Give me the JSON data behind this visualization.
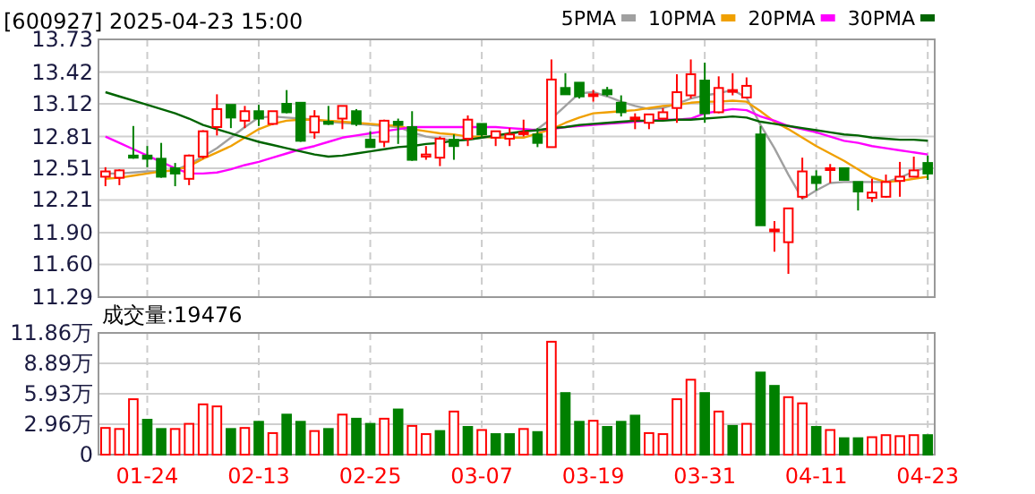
{
  "chart_data": [
    {
      "type": "candlestick",
      "title": "[600927] 2025-04-23 15:00",
      "categories": [
        null,
        null,
        null,
        null,
        null,
        null,
        null,
        null,
        null,
        null,
        null,
        null,
        null,
        null,
        null,
        null,
        null,
        null,
        null,
        null,
        null,
        null,
        null,
        null,
        null,
        null,
        null,
        null,
        null,
        null,
        null,
        null,
        null,
        null,
        null,
        null,
        null,
        null,
        null,
        null,
        null,
        null,
        null,
        null,
        null,
        null,
        null,
        null,
        null,
        null,
        null,
        null,
        null,
        null,
        null,
        null,
        null,
        null,
        null,
        null
      ],
      "ohlc": [
        [
          12.43,
          12.52,
          12.34,
          12.48
        ],
        [
          12.42,
          12.5,
          12.35,
          12.49
        ],
        [
          12.63,
          12.91,
          12.6,
          12.61
        ],
        [
          12.63,
          12.72,
          12.52,
          12.6
        ],
        [
          12.6,
          12.75,
          12.42,
          12.43
        ],
        [
          12.51,
          12.56,
          12.34,
          12.46
        ],
        [
          12.41,
          12.64,
          12.35,
          12.63
        ],
        [
          12.62,
          12.87,
          12.6,
          12.86
        ],
        [
          12.9,
          13.21,
          12.82,
          13.07
        ],
        [
          13.11,
          13.11,
          12.89,
          12.99
        ],
        [
          12.96,
          13.1,
          12.89,
          13.05
        ],
        [
          13.05,
          13.11,
          12.91,
          12.98
        ],
        [
          12.93,
          13.05,
          12.92,
          13.05
        ],
        [
          13.12,
          13.25,
          13.03,
          13.04
        ],
        [
          13.13,
          13.13,
          12.76,
          12.77
        ],
        [
          12.85,
          13.06,
          12.79,
          13.0
        ],
        [
          12.95,
          13.1,
          12.92,
          12.93
        ],
        [
          12.98,
          13.1,
          12.88,
          13.1
        ],
        [
          13.05,
          13.07,
          12.91,
          12.93
        ],
        [
          12.78,
          12.86,
          12.71,
          12.71
        ],
        [
          12.76,
          12.97,
          12.71,
          12.96
        ],
        [
          12.95,
          12.98,
          12.74,
          12.92
        ],
        [
          12.9,
          13.05,
          12.58,
          12.59
        ],
        [
          12.62,
          12.72,
          12.59,
          12.64
        ],
        [
          12.61,
          12.81,
          12.53,
          12.79
        ],
        [
          12.78,
          12.83,
          12.59,
          12.72
        ],
        [
          12.79,
          13.01,
          12.72,
          12.97
        ],
        [
          12.93,
          12.93,
          12.8,
          12.83
        ],
        [
          12.8,
          12.86,
          12.72,
          12.86
        ],
        [
          12.79,
          12.89,
          12.72,
          12.83
        ],
        [
          12.84,
          12.97,
          12.81,
          12.85
        ],
        [
          12.83,
          12.89,
          12.71,
          12.75
        ],
        [
          12.71,
          13.54,
          12.71,
          13.35
        ],
        [
          13.27,
          13.41,
          13.21,
          13.21
        ],
        [
          13.32,
          13.32,
          13.17,
          13.19
        ],
        [
          13.2,
          13.25,
          13.14,
          13.21
        ],
        [
          13.25,
          13.28,
          13.19,
          13.21
        ],
        [
          13.13,
          13.2,
          13.0,
          13.04
        ],
        [
          12.98,
          13.03,
          12.88,
          12.99
        ],
        [
          12.94,
          13.02,
          12.88,
          13.02
        ],
        [
          12.98,
          13.08,
          12.97,
          13.04
        ],
        [
          13.08,
          13.4,
          12.94,
          13.23
        ],
        [
          13.2,
          13.54,
          13.17,
          13.4
        ],
        [
          13.34,
          13.51,
          12.94,
          13.03
        ],
        [
          13.04,
          13.38,
          13.03,
          13.27
        ],
        [
          13.24,
          13.41,
          13.2,
          13.25
        ],
        [
          13.18,
          13.37,
          13.17,
          13.29
        ],
        [
          12.83,
          12.91,
          11.97,
          11.97
        ],
        [
          11.92,
          12.01,
          11.72,
          11.93
        ],
        [
          11.81,
          12.13,
          11.51,
          12.13
        ],
        [
          12.24,
          12.61,
          12.22,
          12.48
        ],
        [
          12.43,
          12.49,
          12.3,
          12.37
        ],
        [
          12.5,
          12.55,
          12.37,
          12.51
        ],
        [
          12.51,
          12.51,
          12.4,
          12.4
        ],
        [
          12.38,
          12.38,
          12.11,
          12.29
        ],
        [
          12.23,
          12.41,
          12.19,
          12.28
        ],
        [
          12.24,
          12.45,
          12.23,
          12.38
        ],
        [
          12.39,
          12.57,
          12.24,
          12.43
        ],
        [
          12.43,
          12.62,
          12.43,
          12.49
        ],
        [
          12.56,
          12.63,
          12.4,
          12.46
        ]
      ],
      "colors": [
        "#ff0000",
        "#ff0000",
        "#008000",
        "#008000",
        "#008000",
        "#008000",
        "#ff0000",
        "#ff0000",
        "#ff0000",
        "#008000",
        "#ff0000",
        "#008000",
        "#ff0000",
        "#008000",
        "#008000",
        "#ff0000",
        "#008000",
        "#ff0000",
        "#008000",
        "#008000",
        "#ff0000",
        "#008000",
        "#008000",
        "#ff0000",
        "#ff0000",
        "#008000",
        "#ff0000",
        "#008000",
        "#ff0000",
        "#ff0000",
        "#ff0000",
        "#008000",
        "#ff0000",
        "#008000",
        "#008000",
        "#ff0000",
        "#008000",
        "#008000",
        "#ff0000",
        "#ff0000",
        "#ff0000",
        "#ff0000",
        "#ff0000",
        "#008000",
        "#ff0000",
        "#ff0000",
        "#ff0000",
        "#008000",
        "#ff0000",
        "#ff0000",
        "#ff0000",
        "#008000",
        "#ff0000",
        "#008000",
        "#008000",
        "#ff0000",
        "#ff0000",
        "#ff0000",
        "#ff0000",
        "#008000"
      ],
      "series": [
        {
          "name": "5PMA",
          "type": "line",
          "color": "#a0a0a0",
          "values": [
            12.46,
            12.46,
            12.47,
            12.48,
            12.48,
            12.49,
            12.55,
            12.62,
            12.7,
            12.8,
            12.9,
            12.99,
            13.0,
            12.99,
            12.98,
            12.97,
            12.95,
            12.94,
            12.93,
            12.92,
            12.91,
            12.9,
            12.85,
            12.81,
            12.79,
            12.77,
            12.78,
            12.8,
            12.81,
            12.83,
            12.86,
            12.88,
            12.98,
            13.1,
            13.22,
            13.23,
            13.19,
            13.14,
            13.1,
            13.07,
            13.08,
            13.12,
            13.17,
            13.2,
            13.22,
            13.25,
            13.18,
            12.92,
            12.7,
            12.45,
            12.22,
            12.3,
            12.37,
            12.38,
            12.38,
            12.38,
            12.38,
            12.42,
            12.48,
            12.52
          ]
        },
        {
          "name": "10PMA",
          "type": "line",
          "color": "#f0a000",
          "values": [
            12.41,
            12.42,
            12.44,
            12.46,
            12.48,
            12.49,
            12.53,
            12.6,
            12.66,
            12.72,
            12.8,
            12.88,
            12.93,
            12.96,
            12.97,
            12.97,
            12.96,
            12.95,
            12.94,
            12.93,
            12.92,
            12.91,
            12.88,
            12.86,
            12.84,
            12.83,
            12.81,
            12.81,
            12.8,
            12.8,
            12.8,
            12.84,
            12.88,
            12.94,
            12.99,
            13.03,
            13.04,
            13.05,
            13.06,
            13.08,
            13.1,
            13.11,
            13.13,
            13.14,
            13.14,
            13.15,
            13.14,
            13.05,
            12.95,
            12.88,
            12.8,
            12.72,
            12.65,
            12.58,
            12.5,
            12.42,
            12.38,
            12.39,
            12.41,
            12.43
          ]
        },
        {
          "name": "20PMA",
          "type": "line",
          "color": "#ff00ff",
          "values": [
            12.81,
            12.75,
            12.69,
            12.63,
            12.57,
            12.51,
            12.46,
            12.46,
            12.47,
            12.5,
            12.54,
            12.57,
            12.61,
            12.65,
            12.69,
            12.72,
            12.76,
            12.8,
            12.82,
            12.84,
            12.86,
            12.88,
            12.9,
            12.9,
            12.9,
            12.9,
            12.9,
            12.9,
            12.9,
            12.89,
            12.88,
            12.87,
            12.88,
            12.9,
            12.91,
            12.92,
            12.93,
            12.94,
            12.95,
            12.96,
            12.97,
            12.97,
            12.98,
            13.03,
            13.05,
            13.07,
            13.06,
            13.0,
            12.96,
            12.91,
            12.88,
            12.85,
            12.81,
            12.77,
            12.75,
            12.72,
            12.7,
            12.68,
            12.66,
            12.64
          ]
        },
        {
          "name": "30PMA",
          "type": "line",
          "color": "#006400",
          "values": [
            13.23,
            13.19,
            13.15,
            13.11,
            13.07,
            13.03,
            12.98,
            12.92,
            12.88,
            12.84,
            12.8,
            12.76,
            12.73,
            12.7,
            12.67,
            12.64,
            12.62,
            12.63,
            12.65,
            12.67,
            12.69,
            12.71,
            12.72,
            12.74,
            12.75,
            12.77,
            12.78,
            12.8,
            12.82,
            12.84,
            12.86,
            12.87,
            12.89,
            12.9,
            12.92,
            12.93,
            12.94,
            12.95,
            12.96,
            12.96,
            12.96,
            12.97,
            12.97,
            12.98,
            12.99,
            13.0,
            12.99,
            12.95,
            12.93,
            12.91,
            12.89,
            12.87,
            12.85,
            12.83,
            12.82,
            12.8,
            12.79,
            12.78,
            12.78,
            12.77
          ]
        }
      ],
      "ylim": [
        11.29,
        13.73
      ],
      "yticks": [
        11.29,
        {
          "value": 11.6,
          "label": "11.60"
        },
        {
          "value": 11.9,
          "label": "11.90"
        },
        12.21,
        12.51,
        12.81,
        13.12,
        13.42,
        13.73
      ],
      "grid": true,
      "legend": "top right",
      "tick_labels": "y"
    },
    {
      "type": "bar",
      "title": "成交量:19476",
      "categories": [
        null,
        null,
        null,
        "01-24",
        null,
        null,
        null,
        null,
        null,
        null,
        null,
        "02-13",
        null,
        null,
        null,
        null,
        null,
        null,
        null,
        "02-25",
        null,
        null,
        null,
        null,
        null,
        null,
        null,
        "03-07",
        null,
        null,
        null,
        null,
        null,
        null,
        null,
        "03-19",
        null,
        null,
        null,
        null,
        null,
        null,
        null,
        "03-31",
        null,
        null,
        null,
        null,
        null,
        null,
        null,
        "04-11",
        null,
        null,
        null,
        null,
        null,
        null,
        null,
        "04-23"
      ],
      "values": [
        2.6,
        2.5,
        5.4,
        3.4,
        2.5,
        2.5,
        3.0,
        4.9,
        4.7,
        2.5,
        2.6,
        3.2,
        2.1,
        3.9,
        3.2,
        2.3,
        2.5,
        3.9,
        3.5,
        3.0,
        3.5,
        4.4,
        2.8,
        2.0,
        2.3,
        4.2,
        2.7,
        2.4,
        2.0,
        2.0,
        2.5,
        2.2,
        11.0,
        6.0,
        3.2,
        3.3,
        2.7,
        3.2,
        3.8,
        2.1,
        2.0,
        5.4,
        7.3,
        6.0,
        4.2,
        2.8,
        3.0,
        8.0,
        6.7,
        5.6,
        5.0,
        2.7,
        2.4,
        1.6,
        1.6,
        1.7,
        1.9,
        1.8,
        1.9,
        1.9
      ],
      "colors": [
        "#ff0000",
        "#ff0000",
        "#ff0000",
        "#008000",
        "#008000",
        "#ff0000",
        "#ff0000",
        "#ff0000",
        "#ff0000",
        "#008000",
        "#ff0000",
        "#008000",
        "#ff0000",
        "#008000",
        "#008000",
        "#ff0000",
        "#008000",
        "#ff0000",
        "#008000",
        "#008000",
        "#ff0000",
        "#008000",
        "#ff0000",
        "#ff0000",
        "#008000",
        "#ff0000",
        "#008000",
        "#ff0000",
        "#008000",
        "#008000",
        "#ff0000",
        "#008000",
        "#ff0000",
        "#008000",
        "#008000",
        "#ff0000",
        "#008000",
        "#008000",
        "#008000",
        "#ff0000",
        "#ff0000",
        "#ff0000",
        "#ff0000",
        "#008000",
        "#ff0000",
        "#008000",
        "#ff0000",
        "#008000",
        "#008000",
        "#ff0000",
        "#ff0000",
        "#008000",
        "#ff0000",
        "#008000",
        "#008000",
        "#ff0000",
        "#ff0000",
        "#ff0000",
        "#ff0000",
        "#008000"
      ],
      "ylim": [
        0,
        11.86
      ],
      "yticks": [
        0,
        {
          "value": 2.96,
          "label": "2.96万"
        },
        {
          "value": 5.93,
          "label": "5.93万"
        },
        {
          "value": 8.89,
          "label": "8.89万"
        },
        {
          "value": 11.86,
          "label": "11.86万"
        }
      ],
      "grid": true
    }
  ]
}
